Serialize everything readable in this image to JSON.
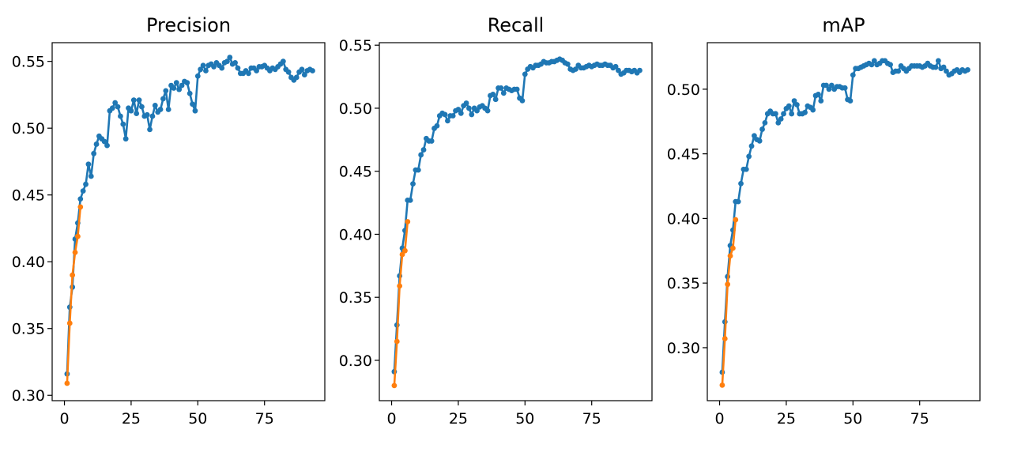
{
  "chart_data": [
    {
      "type": "line",
      "title": "Precision",
      "xlabel": "",
      "ylabel": "",
      "xlim": [
        -4.6,
        97.6
      ],
      "ylim": [
        0.296,
        0.564
      ],
      "xticks": [
        0,
        25,
        50,
        75
      ],
      "yticks": [
        0.3,
        0.35,
        0.4,
        0.45,
        0.5,
        0.55
      ],
      "xtick_labels": [
        "0",
        "25",
        "50",
        "75"
      ],
      "ytick_labels": [
        "0.30",
        "0.35",
        "0.40",
        "0.45",
        "0.50",
        "0.55"
      ],
      "grid": false,
      "series": [
        {
          "color": "#1f77b4",
          "marker": "dot",
          "x": [
            1,
            2,
            3,
            4,
            5,
            6,
            7,
            8,
            9,
            10,
            11,
            12,
            13,
            14,
            15,
            16,
            17,
            18,
            19,
            20,
            21,
            22,
            23,
            24,
            25,
            26,
            27,
            28,
            29,
            30,
            31,
            32,
            33,
            34,
            35,
            36,
            37,
            38,
            39,
            40,
            41,
            42,
            43,
            44,
            45,
            46,
            47,
            48,
            49,
            50,
            51,
            52,
            53,
            54,
            55,
            56,
            57,
            58,
            59,
            60,
            61,
            62,
            63,
            64,
            65,
            66,
            67,
            68,
            69,
            70,
            71,
            72,
            73,
            74,
            75,
            76,
            77,
            78,
            79,
            80,
            81,
            82,
            83,
            84,
            85,
            86,
            87,
            88,
            89,
            90,
            91,
            92,
            93
          ],
          "y": [
            0.316,
            0.366,
            0.381,
            0.417,
            0.429,
            0.447,
            0.453,
            0.458,
            0.473,
            0.464,
            0.481,
            0.488,
            0.494,
            0.492,
            0.49,
            0.487,
            0.513,
            0.515,
            0.519,
            0.516,
            0.509,
            0.503,
            0.492,
            0.515,
            0.513,
            0.521,
            0.511,
            0.521,
            0.516,
            0.509,
            0.51,
            0.499,
            0.509,
            0.517,
            0.512,
            0.514,
            0.522,
            0.528,
            0.514,
            0.532,
            0.53,
            0.534,
            0.529,
            0.532,
            0.535,
            0.534,
            0.526,
            0.518,
            0.513,
            0.539,
            0.544,
            0.547,
            0.543,
            0.547,
            0.548,
            0.546,
            0.549,
            0.547,
            0.545,
            0.549,
            0.55,
            0.553,
            0.548,
            0.549,
            0.545,
            0.541,
            0.541,
            0.543,
            0.541,
            0.545,
            0.545,
            0.543,
            0.546,
            0.546,
            0.547,
            0.545,
            0.543,
            0.545,
            0.544,
            0.546,
            0.548,
            0.55,
            0.544,
            0.542,
            0.538,
            0.536,
            0.538,
            0.542,
            0.544,
            0.54,
            0.543,
            0.544,
            0.543
          ]
        },
        {
          "color": "#ff7f0e",
          "marker": "dot",
          "x": [
            1,
            2,
            3,
            4,
            5,
            6
          ],
          "y": [
            0.309,
            0.354,
            0.39,
            0.407,
            0.419,
            0.441
          ]
        }
      ]
    },
    {
      "type": "line",
      "title": "Recall",
      "xlabel": "",
      "ylabel": "",
      "xlim": [
        -4.6,
        97.6
      ],
      "ylim": [
        0.268,
        0.552
      ],
      "xticks": [
        0,
        25,
        50,
        75
      ],
      "yticks": [
        0.3,
        0.35,
        0.4,
        0.45,
        0.5,
        0.55
      ],
      "xtick_labels": [
        "0",
        "25",
        "50",
        "75"
      ],
      "ytick_labels": [
        "0.30",
        "0.35",
        "0.40",
        "0.45",
        "0.50",
        "0.55"
      ],
      "grid": false,
      "series": [
        {
          "color": "#1f77b4",
          "marker": "dot",
          "x": [
            1,
            2,
            3,
            4,
            5,
            6,
            7,
            8,
            9,
            10,
            11,
            12,
            13,
            14,
            15,
            16,
            17,
            18,
            19,
            20,
            21,
            22,
            23,
            24,
            25,
            26,
            27,
            28,
            29,
            30,
            31,
            32,
            33,
            34,
            35,
            36,
            37,
            38,
            39,
            40,
            41,
            42,
            43,
            44,
            45,
            46,
            47,
            48,
            49,
            50,
            51,
            52,
            53,
            54,
            55,
            56,
            57,
            58,
            59,
            60,
            61,
            62,
            63,
            64,
            65,
            66,
            67,
            68,
            69,
            70,
            71,
            72,
            73,
            74,
            75,
            76,
            77,
            78,
            79,
            80,
            81,
            82,
            83,
            84,
            85,
            86,
            87,
            88,
            89,
            90,
            91,
            92,
            93
          ],
          "y": [
            0.291,
            0.328,
            0.367,
            0.389,
            0.403,
            0.427,
            0.427,
            0.44,
            0.451,
            0.451,
            0.463,
            0.467,
            0.476,
            0.474,
            0.474,
            0.484,
            0.486,
            0.494,
            0.496,
            0.495,
            0.49,
            0.494,
            0.494,
            0.498,
            0.499,
            0.496,
            0.502,
            0.504,
            0.5,
            0.495,
            0.5,
            0.498,
            0.501,
            0.502,
            0.5,
            0.498,
            0.51,
            0.511,
            0.507,
            0.516,
            0.516,
            0.512,
            0.516,
            0.515,
            0.514,
            0.515,
            0.515,
            0.508,
            0.506,
            0.527,
            0.531,
            0.533,
            0.532,
            0.534,
            0.534,
            0.535,
            0.537,
            0.536,
            0.536,
            0.537,
            0.537,
            0.538,
            0.539,
            0.538,
            0.536,
            0.535,
            0.531,
            0.53,
            0.531,
            0.534,
            0.532,
            0.532,
            0.533,
            0.534,
            0.533,
            0.534,
            0.535,
            0.534,
            0.534,
            0.535,
            0.534,
            0.534,
            0.532,
            0.533,
            0.53,
            0.527,
            0.528,
            0.53,
            0.53,
            0.529,
            0.53,
            0.528,
            0.53
          ]
        },
        {
          "color": "#ff7f0e",
          "marker": "dot",
          "x": [
            1,
            2,
            3,
            4,
            5,
            6
          ],
          "y": [
            0.28,
            0.315,
            0.359,
            0.384,
            0.387,
            0.41
          ]
        }
      ]
    },
    {
      "type": "line",
      "title": "mAP",
      "xlabel": "",
      "ylabel": "",
      "xlim": [
        -4.6,
        97.6
      ],
      "ylim": [
        0.259,
        0.536
      ],
      "xticks": [
        0,
        25,
        50,
        75
      ],
      "yticks": [
        0.3,
        0.35,
        0.4,
        0.45,
        0.5
      ],
      "xtick_labels": [
        "0",
        "25",
        "50",
        "75"
      ],
      "ytick_labels": [
        "0.30",
        "0.35",
        "0.40",
        "0.45",
        "0.50"
      ],
      "grid": false,
      "series": [
        {
          "color": "#1f77b4",
          "marker": "dot",
          "x": [
            1,
            2,
            3,
            4,
            5,
            6,
            7,
            8,
            9,
            10,
            11,
            12,
            13,
            14,
            15,
            16,
            17,
            18,
            19,
            20,
            21,
            22,
            23,
            24,
            25,
            26,
            27,
            28,
            29,
            30,
            31,
            32,
            33,
            34,
            35,
            36,
            37,
            38,
            39,
            40,
            41,
            42,
            43,
            44,
            45,
            46,
            47,
            48,
            49,
            50,
            51,
            52,
            53,
            54,
            55,
            56,
            57,
            58,
            59,
            60,
            61,
            62,
            63,
            64,
            65,
            66,
            67,
            68,
            69,
            70,
            71,
            72,
            73,
            74,
            75,
            76,
            77,
            78,
            79,
            80,
            81,
            82,
            83,
            84,
            85,
            86,
            87,
            88,
            89,
            90,
            91,
            92,
            93
          ],
          "y": [
            0.281,
            0.32,
            0.355,
            0.379,
            0.391,
            0.413,
            0.413,
            0.427,
            0.438,
            0.438,
            0.448,
            0.456,
            0.464,
            0.461,
            0.46,
            0.469,
            0.474,
            0.481,
            0.483,
            0.481,
            0.481,
            0.474,
            0.477,
            0.481,
            0.485,
            0.487,
            0.481,
            0.491,
            0.488,
            0.481,
            0.481,
            0.482,
            0.487,
            0.486,
            0.484,
            0.495,
            0.496,
            0.491,
            0.503,
            0.503,
            0.5,
            0.503,
            0.5,
            0.502,
            0.502,
            0.501,
            0.501,
            0.492,
            0.491,
            0.511,
            0.516,
            0.516,
            0.517,
            0.518,
            0.519,
            0.52,
            0.519,
            0.522,
            0.519,
            0.52,
            0.522,
            0.522,
            0.52,
            0.519,
            0.513,
            0.514,
            0.514,
            0.518,
            0.516,
            0.514,
            0.516,
            0.518,
            0.518,
            0.518,
            0.518,
            0.517,
            0.518,
            0.52,
            0.518,
            0.517,
            0.517,
            0.522,
            0.516,
            0.517,
            0.514,
            0.511,
            0.512,
            0.514,
            0.515,
            0.513,
            0.515,
            0.514,
            0.515
          ]
        },
        {
          "color": "#ff7f0e",
          "marker": "dot",
          "x": [
            1,
            2,
            3,
            4,
            5,
            6
          ],
          "y": [
            0.271,
            0.307,
            0.349,
            0.371,
            0.377,
            0.399
          ]
        }
      ]
    }
  ]
}
